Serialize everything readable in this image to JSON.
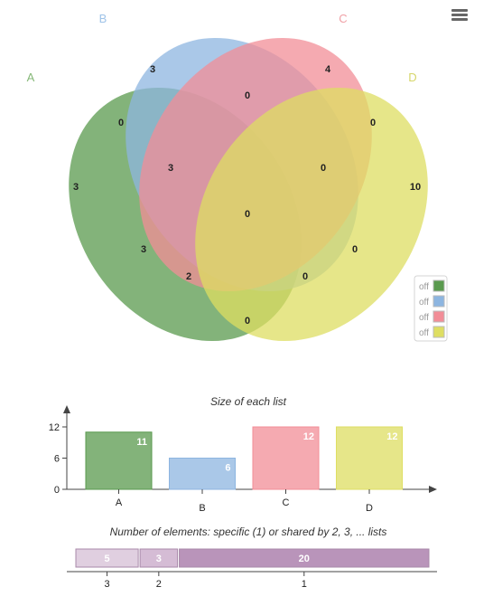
{
  "menu_icon": "hamburger-menu-icon",
  "venn": {
    "sets": [
      {
        "name": "A",
        "color": "#5a9a4e",
        "label_color": "#86b878"
      },
      {
        "name": "B",
        "color": "#8db5e0",
        "label_color": "#9fc3e8"
      },
      {
        "name": "C",
        "color": "#f28d97",
        "label_color": "#f0a0a6"
      },
      {
        "name": "D",
        "color": "#dede62",
        "label_color": "#d6d66a"
      }
    ],
    "regions": [
      {
        "sets": "A",
        "count": "3"
      },
      {
        "sets": "B",
        "count": "3"
      },
      {
        "sets": "C",
        "count": "4"
      },
      {
        "sets": "D",
        "count": "10"
      },
      {
        "sets": "AB",
        "count": "0"
      },
      {
        "sets": "BC",
        "count": "0"
      },
      {
        "sets": "CD",
        "count": "0"
      },
      {
        "sets": "ABC",
        "count": "3"
      },
      {
        "sets": "BCD",
        "count": "0"
      },
      {
        "sets": "ABCD",
        "count": "0"
      },
      {
        "sets": "AC",
        "count": "3"
      },
      {
        "sets": "BD",
        "count": "0"
      },
      {
        "sets": "ACD",
        "count": "2"
      },
      {
        "sets": "ABD",
        "count": "0"
      },
      {
        "sets": "AD",
        "count": "0"
      }
    ],
    "legend": [
      {
        "label": "off",
        "color": "#5a9a4e"
      },
      {
        "label": "off",
        "color": "#8db5e0"
      },
      {
        "label": "off",
        "color": "#f28d97"
      },
      {
        "label": "off",
        "color": "#dede62"
      }
    ]
  },
  "chart_data": [
    {
      "type": "bar",
      "title": "Size of each list",
      "categories": [
        "A",
        "B",
        "C",
        "D"
      ],
      "values": [
        11,
        6,
        12,
        12
      ],
      "value_labels": [
        "11",
        "6",
        "12",
        "12"
      ],
      "colors": [
        "#5a9a4e",
        "#8db5e0",
        "#f28d97",
        "#dede62"
      ],
      "yticks": [
        "0",
        "6",
        "12"
      ],
      "ylim": [
        0,
        12
      ],
      "grid": false
    },
    {
      "type": "bar",
      "orientation": "horizontal-stacked",
      "title": "Number of elements: specific (1) or shared by 2, 3, ... lists",
      "categories": [
        "3",
        "2",
        "1"
      ],
      "values": [
        5,
        3,
        20
      ],
      "value_labels": [
        "5",
        "3",
        "20"
      ],
      "colors": [
        "#e0cfe0",
        "#d5bcd5",
        "#b994ba"
      ]
    }
  ]
}
